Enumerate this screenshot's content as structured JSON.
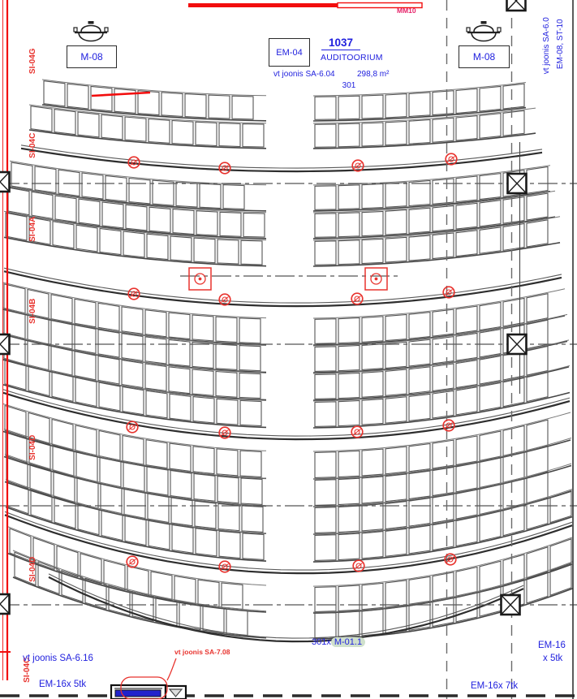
{
  "colors": {
    "blue": "#2121de",
    "red": "#e8332e",
    "bright_red": "#f20d0d",
    "magenta": "#e6246a",
    "highlight_green": "#cfe0cc",
    "line_gray": "#4a4a4a"
  },
  "header": {
    "mm10": "MM10",
    "em04": "EM-04",
    "room_number": "1037",
    "room_name": "AUDITOORIUM",
    "ref_note": "vt joonis SA-6.04",
    "area": "298,8 m²",
    "code": "301",
    "m08_left": "M-08",
    "m08_right": "M-08"
  },
  "right_margin": {
    "note1": "vt joonis SA-6.0",
    "note2": "EM-08, ST-10"
  },
  "left_margin": {
    "labels": [
      "SI-04G",
      "SI-04C",
      "SI-04A",
      "SI-04B",
      "SI-04D",
      "SI-04D",
      "SI-04C"
    ]
  },
  "bottom": {
    "seat_count": "301x",
    "seat_type": "M-01.1",
    "note_sa616": "vt joonis SA-6.16",
    "note_em16_5_left": "EM-16x 5tk",
    "note_sa708": "vt joonis SA-7.08",
    "note_em16_right1": "EM-16",
    "note_em16_right2": "x 5tk",
    "note_em16_7": "EM-16x 7tk"
  },
  "symbols": {
    "column": "column-icon",
    "detector": "detector-icon",
    "luminaire": "luminaire-icon",
    "equipment": "equipment-icon"
  }
}
